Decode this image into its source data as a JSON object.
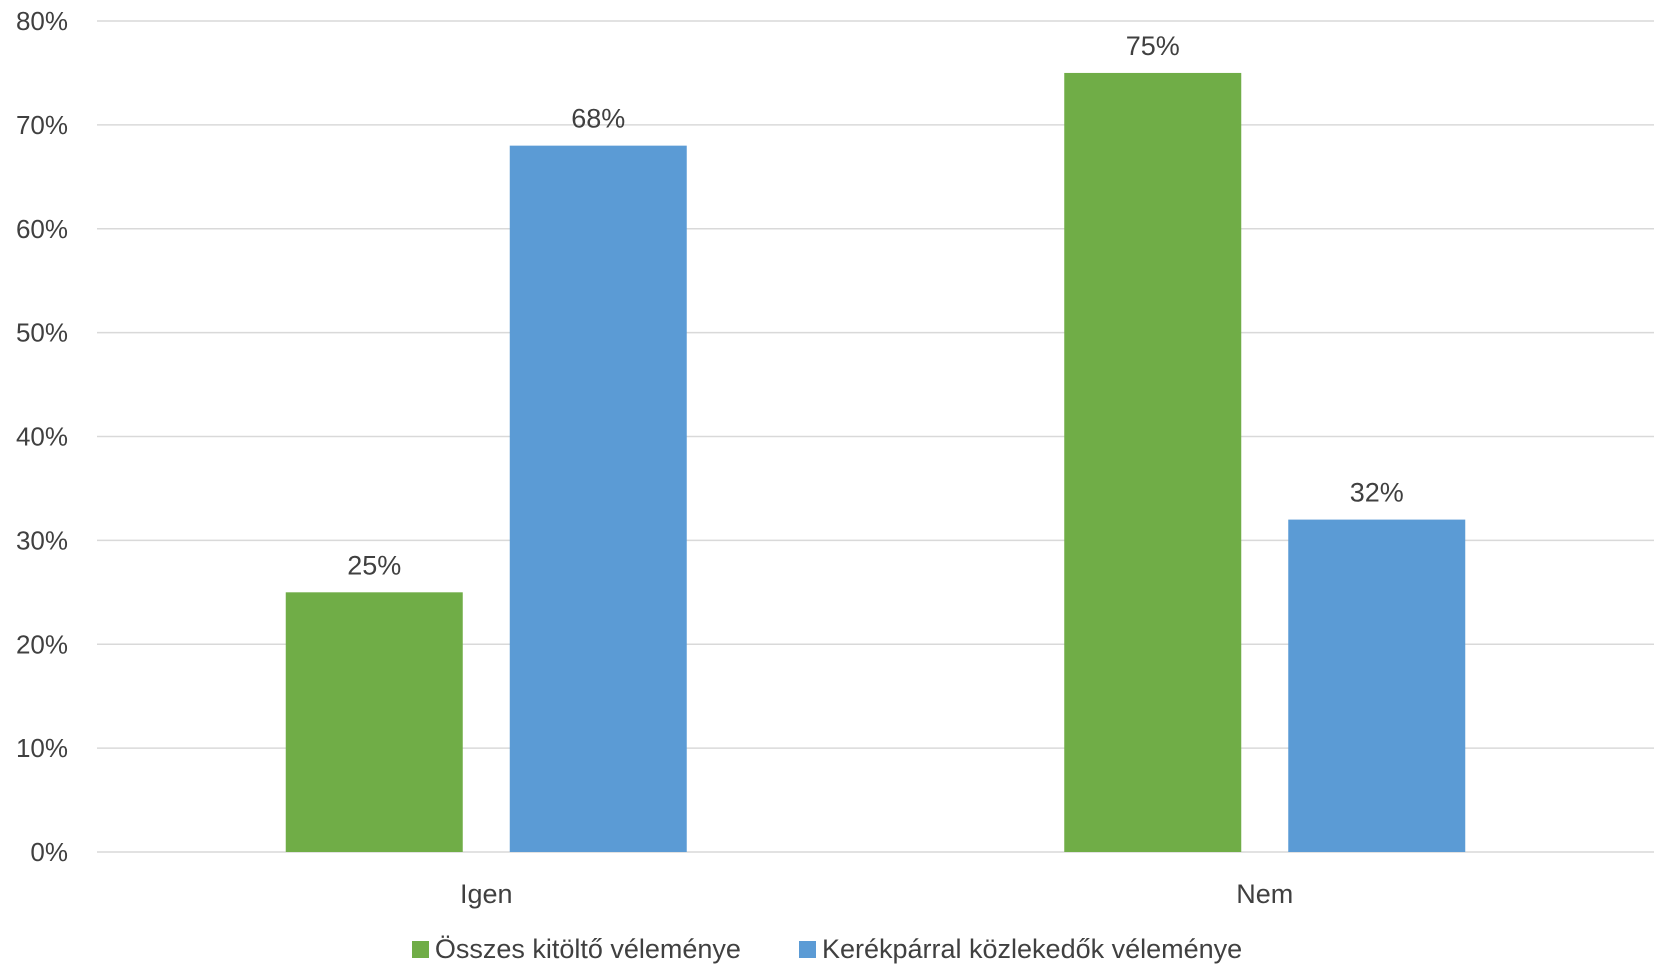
{
  "chart_data": {
    "type": "bar",
    "categories": [
      "Igen",
      "Nem"
    ],
    "series": [
      {
        "name": "Összes kitöltő véleménye",
        "color": "#70AD47",
        "values": [
          25,
          75
        ],
        "labels": [
          "25%",
          "75%"
        ]
      },
      {
        "name": "Kerékpárral közlekedők véleménye",
        "color": "#5B9BD5",
        "values": [
          68,
          32
        ],
        "labels": [
          "68%",
          "32%"
        ]
      }
    ],
    "ylim": [
      0,
      80
    ],
    "yticks": [
      0,
      10,
      20,
      30,
      40,
      50,
      60,
      70,
      80
    ],
    "ytick_labels": [
      "0%",
      "10%",
      "20%",
      "30%",
      "40%",
      "50%",
      "60%",
      "70%",
      "80%"
    ],
    "grid": true,
    "legend": "bottom",
    "title": "",
    "xlabel": "",
    "ylabel": ""
  }
}
